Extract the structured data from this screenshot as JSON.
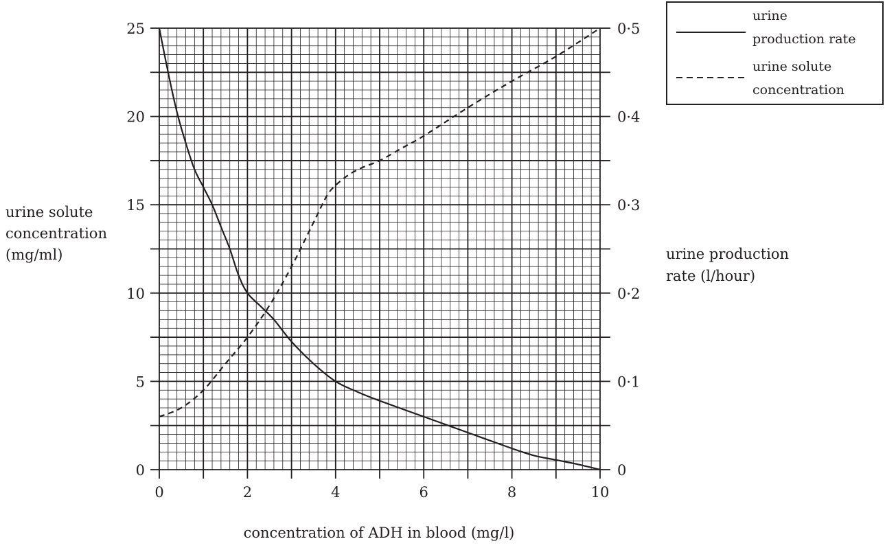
{
  "chart_data": {
    "type": "line",
    "xlabel": "concentration of ADH in blood (mg/l)",
    "ylabel_left": [
      "urine solute",
      "concentration",
      "(mg/ml)"
    ],
    "ylabel_right": [
      "urine production",
      "rate (l/hour)"
    ],
    "xlim": [
      0,
      10
    ],
    "ylim_left": [
      0,
      25
    ],
    "ylim_right": [
      0,
      0.5
    ],
    "x_ticks": [
      "0",
      "2",
      "4",
      "6",
      "8",
      "10"
    ],
    "y_ticks_left": [
      "0",
      "5",
      "10",
      "15",
      "20",
      "25"
    ],
    "y_ticks_right": [
      "0",
      "0·1",
      "0·2",
      "0·3",
      "0·4",
      "0·5"
    ],
    "grid": true,
    "legend_position": "top-right",
    "series": [
      {
        "name": "urine production rate",
        "axis": "right",
        "style": "solid",
        "label_lines": [
          "urine",
          "production rate"
        ],
        "x": [
          0,
          0.2,
          0.4,
          0.6,
          0.8,
          1.0,
          1.2,
          1.4,
          1.6,
          1.8,
          2.0,
          2.3,
          2.6,
          3.0,
          3.5,
          4.0,
          4.5,
          5.0,
          6.0,
          7.0,
          8.0,
          8.5,
          9.0,
          9.5,
          10.0
        ],
        "y": [
          0.5,
          0.45,
          0.405,
          0.37,
          0.34,
          0.32,
          0.3,
          0.275,
          0.25,
          0.22,
          0.2,
          0.185,
          0.17,
          0.145,
          0.12,
          0.1,
          0.088,
          0.078,
          0.06,
          0.042,
          0.024,
          0.016,
          0.011,
          0.006,
          0.0
        ]
      },
      {
        "name": "urine solute concentration",
        "axis": "left",
        "style": "dashed",
        "label_lines": [
          "urine solute",
          "concentration"
        ],
        "x": [
          0,
          0.5,
          1.0,
          1.5,
          2.0,
          2.5,
          3.0,
          3.5,
          3.8,
          4.0,
          4.3,
          4.6,
          5.0,
          5.5,
          6.0,
          7.0,
          8.0,
          9.0,
          10.0
        ],
        "y": [
          3,
          3.5,
          4.5,
          6,
          7.5,
          9.3,
          11.5,
          14,
          15.5,
          16.1,
          16.7,
          17.1,
          17.5,
          18.2,
          18.9,
          20.5,
          22,
          23.4,
          25
        ]
      }
    ]
  }
}
